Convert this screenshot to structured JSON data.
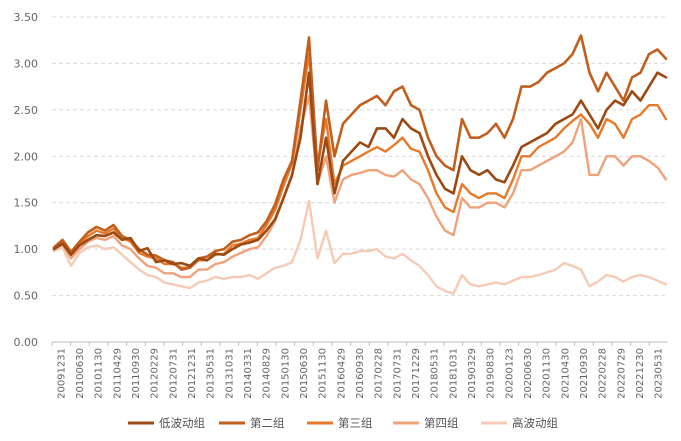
{
  "chart_data": {
    "type": "line",
    "title": "",
    "xlabel": "",
    "ylabel": "",
    "ylim": [
      0,
      3.5
    ],
    "yticks": [
      "0.00",
      "0.50",
      "1.00",
      "1.50",
      "2.00",
      "2.50",
      "3.00",
      "3.50"
    ],
    "grid": "horizontal-dashed",
    "legend_position": "bottom",
    "x_tick_labels": [
      "20091231",
      "20100630",
      "20101130",
      "20110429",
      "20110930",
      "20120229",
      "20120731",
      "20121231",
      "20130531",
      "20131031",
      "20140331",
      "20140829",
      "20150130",
      "20150630",
      "20151130",
      "20160429",
      "20160930",
      "20170228",
      "20170731",
      "20171229",
      "20180531",
      "20181031",
      "20190329",
      "20190830",
      "20200123",
      "20200630",
      "20201130",
      "20210430",
      "20210930",
      "20220228",
      "20220729",
      "20221230",
      "20230531"
    ],
    "series": [
      {
        "name": "低波动组",
        "color": "#9c4a14",
        "width": 2.6,
        "values": [
          1.0,
          1.06,
          0.94,
          1.04,
          1.1,
          1.15,
          1.14,
          1.18,
          1.1,
          1.12,
          0.98,
          1.01,
          0.86,
          0.88,
          0.84,
          0.85,
          0.82,
          0.9,
          0.88,
          0.95,
          0.94,
          1.0,
          1.05,
          1.07,
          1.1,
          1.2,
          1.32,
          1.55,
          1.8,
          2.2,
          2.9,
          1.7,
          2.2,
          1.6,
          1.95,
          2.05,
          2.15,
          2.1,
          2.3,
          2.3,
          2.2,
          2.4,
          2.3,
          2.25,
          2.0,
          1.8,
          1.65,
          1.6,
          2.0,
          1.85,
          1.8,
          1.85,
          1.75,
          1.72,
          1.9,
          2.1,
          2.15,
          2.2,
          2.25,
          2.35,
          2.4,
          2.45,
          2.6,
          2.45,
          2.3,
          2.5,
          2.6,
          2.55,
          2.7,
          2.6,
          2.75,
          2.9,
          2.85
        ]
      },
      {
        "name": "第二组",
        "color": "#c05f1e",
        "width": 2.6,
        "values": [
          1.02,
          1.1,
          0.97,
          1.08,
          1.18,
          1.24,
          1.2,
          1.26,
          1.14,
          1.1,
          1.0,
          0.94,
          0.93,
          0.88,
          0.86,
          0.78,
          0.8,
          0.9,
          0.92,
          0.98,
          1.0,
          1.08,
          1.1,
          1.15,
          1.18,
          1.3,
          1.48,
          1.75,
          1.95,
          2.6,
          3.28,
          1.85,
          2.6,
          2.0,
          2.35,
          2.45,
          2.55,
          2.6,
          2.65,
          2.55,
          2.7,
          2.75,
          2.55,
          2.5,
          2.2,
          2.0,
          1.9,
          1.85,
          2.4,
          2.2,
          2.2,
          2.25,
          2.35,
          2.2,
          2.4,
          2.75,
          2.75,
          2.8,
          2.9,
          2.95,
          3.0,
          3.1,
          3.3,
          2.9,
          2.7,
          2.9,
          2.75,
          2.6,
          2.85,
          2.9,
          3.1,
          3.15,
          3.05
        ]
      },
      {
        "name": "第三组",
        "color": "#e8782a",
        "width": 2.4,
        "values": [
          1.01,
          1.08,
          0.95,
          1.06,
          1.14,
          1.2,
          1.17,
          1.22,
          1.12,
          1.08,
          0.96,
          0.92,
          0.9,
          0.84,
          0.84,
          0.8,
          0.8,
          0.88,
          0.88,
          0.94,
          0.95,
          1.04,
          1.06,
          1.1,
          1.12,
          1.26,
          1.42,
          1.68,
          1.92,
          2.5,
          3.1,
          1.9,
          2.4,
          1.7,
          1.9,
          1.95,
          2.0,
          2.05,
          2.1,
          2.05,
          2.12,
          2.2,
          2.08,
          2.05,
          1.85,
          1.6,
          1.45,
          1.4,
          1.7,
          1.6,
          1.55,
          1.6,
          1.6,
          1.55,
          1.75,
          2.0,
          2.0,
          2.1,
          2.15,
          2.2,
          2.3,
          2.38,
          2.45,
          2.35,
          2.2,
          2.4,
          2.35,
          2.2,
          2.4,
          2.45,
          2.55,
          2.55,
          2.4
        ]
      },
      {
        "name": "第四组",
        "color": "#f0a27a",
        "width": 2.4,
        "values": [
          1.0,
          1.05,
          0.9,
          1.0,
          1.08,
          1.12,
          1.1,
          1.14,
          1.04,
          1.0,
          0.9,
          0.82,
          0.8,
          0.74,
          0.74,
          0.7,
          0.7,
          0.78,
          0.78,
          0.84,
          0.86,
          0.92,
          0.96,
          1.0,
          1.02,
          1.14,
          1.3,
          1.55,
          1.78,
          2.3,
          2.65,
          1.7,
          2.0,
          1.5,
          1.75,
          1.8,
          1.82,
          1.85,
          1.85,
          1.8,
          1.78,
          1.85,
          1.75,
          1.7,
          1.55,
          1.35,
          1.2,
          1.15,
          1.55,
          1.45,
          1.45,
          1.5,
          1.5,
          1.45,
          1.6,
          1.85,
          1.85,
          1.9,
          1.95,
          2.0,
          2.05,
          2.15,
          2.4,
          1.8,
          1.8,
          2.0,
          2.0,
          1.9,
          2.0,
          2.0,
          1.95,
          1.88,
          1.75
        ]
      },
      {
        "name": "高波动组",
        "color": "#f6cbb5",
        "width": 2.4,
        "values": [
          0.98,
          1.02,
          0.82,
          0.96,
          1.02,
          1.04,
          1.0,
          1.02,
          0.94,
          0.86,
          0.78,
          0.72,
          0.7,
          0.64,
          0.62,
          0.6,
          0.58,
          0.64,
          0.66,
          0.7,
          0.68,
          0.7,
          0.7,
          0.72,
          0.68,
          0.74,
          0.8,
          0.82,
          0.86,
          1.1,
          1.52,
          0.9,
          1.2,
          0.85,
          0.95,
          0.95,
          0.98,
          0.98,
          1.0,
          0.92,
          0.9,
          0.95,
          0.88,
          0.82,
          0.72,
          0.6,
          0.55,
          0.52,
          0.72,
          0.62,
          0.6,
          0.62,
          0.64,
          0.62,
          0.66,
          0.7,
          0.7,
          0.72,
          0.75,
          0.78,
          0.85,
          0.82,
          0.78,
          0.6,
          0.65,
          0.72,
          0.7,
          0.65,
          0.7,
          0.72,
          0.7,
          0.66,
          0.62
        ]
      }
    ]
  }
}
